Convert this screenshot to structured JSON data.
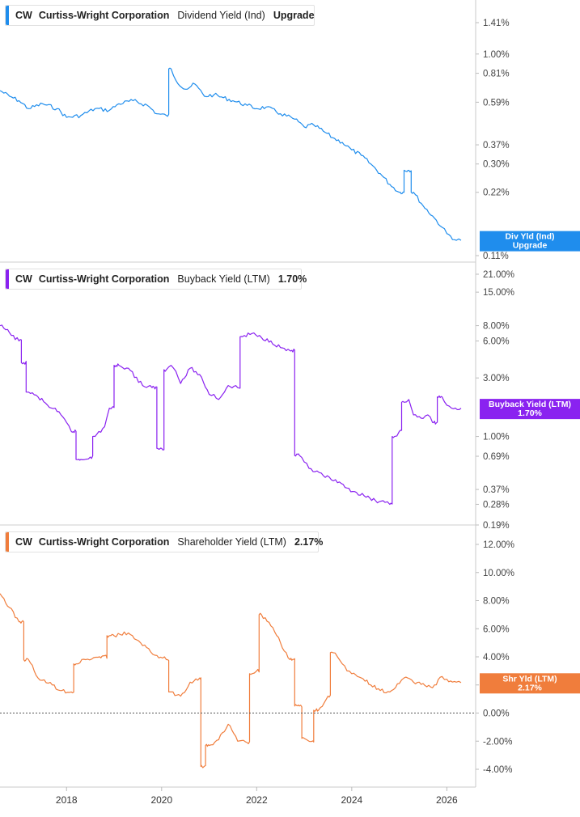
{
  "colors": {
    "dividend": "#1f8ded",
    "buyback": "#8a22f0",
    "shareholder": "#f07d3c",
    "zero_line": "#555555"
  },
  "x_axis": {
    "ticks": [
      "2018",
      "2020",
      "2022",
      "2024",
      "2026"
    ],
    "tick_values": [
      2018,
      2020,
      2022,
      2024,
      2026
    ]
  },
  "panels": [
    {
      "id": "dividend",
      "ticker": "CW",
      "company": "Curtiss-Wright Corporation",
      "metric": "Dividend Yield (Ind)",
      "value": "Upgrade",
      "badge": {
        "line1": "Div Yld (Ind)",
        "line2": "Upgrade"
      },
      "y_ticks": [
        "1.41%",
        "1.00%",
        "0.81%",
        "0.59%",
        "0.37%",
        "0.30%",
        "0.22%",
        "0.11%"
      ]
    },
    {
      "id": "buyback",
      "ticker": "CW",
      "company": "Curtiss-Wright Corporation",
      "metric": "Buyback Yield (LTM)",
      "value": "1.70%",
      "badge": {
        "line1": "Buyback Yield (LTM)",
        "line2": "1.70%"
      },
      "y_ticks": [
        "21.00%",
        "15.00%",
        "8.00%",
        "6.00%",
        "3.00%",
        "1.00%",
        "0.69%",
        "0.37%",
        "0.28%",
        "0.19%"
      ]
    },
    {
      "id": "shareholder",
      "ticker": "CW",
      "company": "Curtiss-Wright Corporation",
      "metric": "Shareholder Yield (LTM)",
      "value": "2.17%",
      "badge": {
        "line1": "Shr Yld (LTM)",
        "line2": "2.17%"
      },
      "y_ticks": [
        "12.00%",
        "10.00%",
        "8.00%",
        "6.00%",
        "4.00%",
        "2.00%",
        "0.00%",
        "-2.00%",
        "-4.00%"
      ]
    }
  ],
  "chart_data": [
    {
      "type": "line",
      "series": [
        {
          "name": "Dividend Yield (Ind)",
          "x": [
            2016.6,
            2016.8,
            2017.0,
            2017.2,
            2017.5,
            2017.8,
            2018.0,
            2018.3,
            2018.6,
            2018.9,
            2019.1,
            2019.4,
            2019.7,
            2019.9,
            2020.1,
            2020.2,
            2020.3,
            2020.5,
            2020.7,
            2020.9,
            2021.1,
            2021.3,
            2021.5,
            2021.8,
            2022.0,
            2022.2,
            2022.5,
            2022.8,
            2023.0,
            2023.2,
            2023.4,
            2023.6,
            2023.8,
            2024.0,
            2024.2,
            2024.4,
            2024.6,
            2024.8,
            2025.0,
            2025.2,
            2025.3,
            2025.5,
            2025.7,
            2025.9,
            2026.0,
            2026.2,
            2026.3
          ],
          "y": [
            0.67,
            0.63,
            0.6,
            0.55,
            0.58,
            0.55,
            0.5,
            0.51,
            0.55,
            0.54,
            0.58,
            0.6,
            0.57,
            0.52,
            0.51,
            0.85,
            0.75,
            0.68,
            0.72,
            0.63,
            0.64,
            0.62,
            0.6,
            0.57,
            0.55,
            0.56,
            0.52,
            0.49,
            0.45,
            0.46,
            0.43,
            0.4,
            0.38,
            0.35,
            0.33,
            0.3,
            0.27,
            0.24,
            0.22,
            0.28,
            0.22,
            0.19,
            0.17,
            0.15,
            0.14,
            0.13,
            0.13
          ]
        }
      ],
      "ylim": [
        0.11,
        1.6
      ],
      "scale": "log"
    },
    {
      "type": "line",
      "series": [
        {
          "name": "Buyback Yield (LTM)",
          "x": [
            2016.6,
            2016.8,
            2017.0,
            2017.1,
            2017.2,
            2017.4,
            2017.6,
            2017.8,
            2018.0,
            2018.1,
            2018.3,
            2018.5,
            2018.6,
            2018.8,
            2018.9,
            2019.1,
            2019.3,
            2019.6,
            2019.8,
            2020.0,
            2020.1,
            2020.2,
            2020.3,
            2020.4,
            2020.6,
            2020.8,
            2021.0,
            2021.1,
            2021.2,
            2021.4,
            2021.6,
            2021.7,
            2021.9,
            2022.1,
            2022.3,
            2022.5,
            2022.7,
            2022.9,
            2023.0,
            2023.1,
            2023.4,
            2023.7,
            2023.9,
            2024.1,
            2024.3,
            2024.5,
            2024.7,
            2024.8,
            2024.9,
            2025.0,
            2025.1,
            2025.2,
            2025.3,
            2025.5,
            2025.6,
            2025.7,
            2025.9,
            2026.0,
            2026.1,
            2026.3
          ],
          "y": [
            8.0,
            7.0,
            6.0,
            4.0,
            2.3,
            2.1,
            1.8,
            1.6,
            1.3,
            1.1,
            0.65,
            0.68,
            1.0,
            1.2,
            1.7,
            3.8,
            3.6,
            2.6,
            2.5,
            0.8,
            3.5,
            3.8,
            3.4,
            2.7,
            3.6,
            3.2,
            2.2,
            2.2,
            2.0,
            2.6,
            2.5,
            6.5,
            6.9,
            6.4,
            6.0,
            5.3,
            5.0,
            0.7,
            0.62,
            0.55,
            0.48,
            0.42,
            0.38,
            0.35,
            0.32,
            0.3,
            0.29,
            0.28,
            1.0,
            1.1,
            1.9,
            2.0,
            1.5,
            1.4,
            1.5,
            1.3,
            2.1,
            1.8,
            1.7,
            1.7
          ]
        }
      ],
      "ylim": [
        0.19,
        24
      ],
      "scale": "log"
    },
    {
      "type": "line",
      "series": [
        {
          "name": "Shareholder Yield (LTM)",
          "x": [
            2016.6,
            2016.8,
            2017.0,
            2017.2,
            2017.4,
            2017.7,
            2017.9,
            2018.1,
            2018.2,
            2018.4,
            2018.7,
            2019.0,
            2019.3,
            2019.6,
            2019.9,
            2020.1,
            2020.2,
            2020.4,
            2020.6,
            2020.8,
            2020.85,
            2021.0,
            2021.2,
            2021.4,
            2021.6,
            2021.8,
            2021.9,
            2022.0,
            2022.1,
            2022.3,
            2022.5,
            2022.7,
            2022.9,
            2023.0,
            2023.1,
            2023.3,
            2023.5,
            2023.6,
            2023.7,
            2023.8,
            2023.9,
            2024.0,
            2024.2,
            2024.4,
            2024.6,
            2024.8,
            2025.0,
            2025.1,
            2025.3,
            2025.5,
            2025.7,
            2025.9,
            2026.0,
            2026.2,
            2026.3
          ],
          "y": [
            8.5,
            7.5,
            6.5,
            3.8,
            2.5,
            2.0,
            1.6,
            1.5,
            3.5,
            3.8,
            4.0,
            5.5,
            5.7,
            4.8,
            4.1,
            3.8,
            1.5,
            1.2,
            2.2,
            2.5,
            -3.8,
            -2.3,
            -1.9,
            -0.8,
            -2.0,
            -2.1,
            2.8,
            3.0,
            7.0,
            6.2,
            5.0,
            3.8,
            0.5,
            -1.8,
            -2.0,
            0.2,
            1.2,
            4.3,
            4.0,
            3.5,
            3.0,
            2.8,
            2.5,
            2.0,
            1.6,
            1.5,
            2.1,
            2.5,
            2.2,
            2.1,
            1.8,
            2.6,
            2.4,
            2.2,
            2.17
          ]
        }
      ],
      "ylim": [
        -5,
        13
      ],
      "scale": "linear"
    }
  ]
}
